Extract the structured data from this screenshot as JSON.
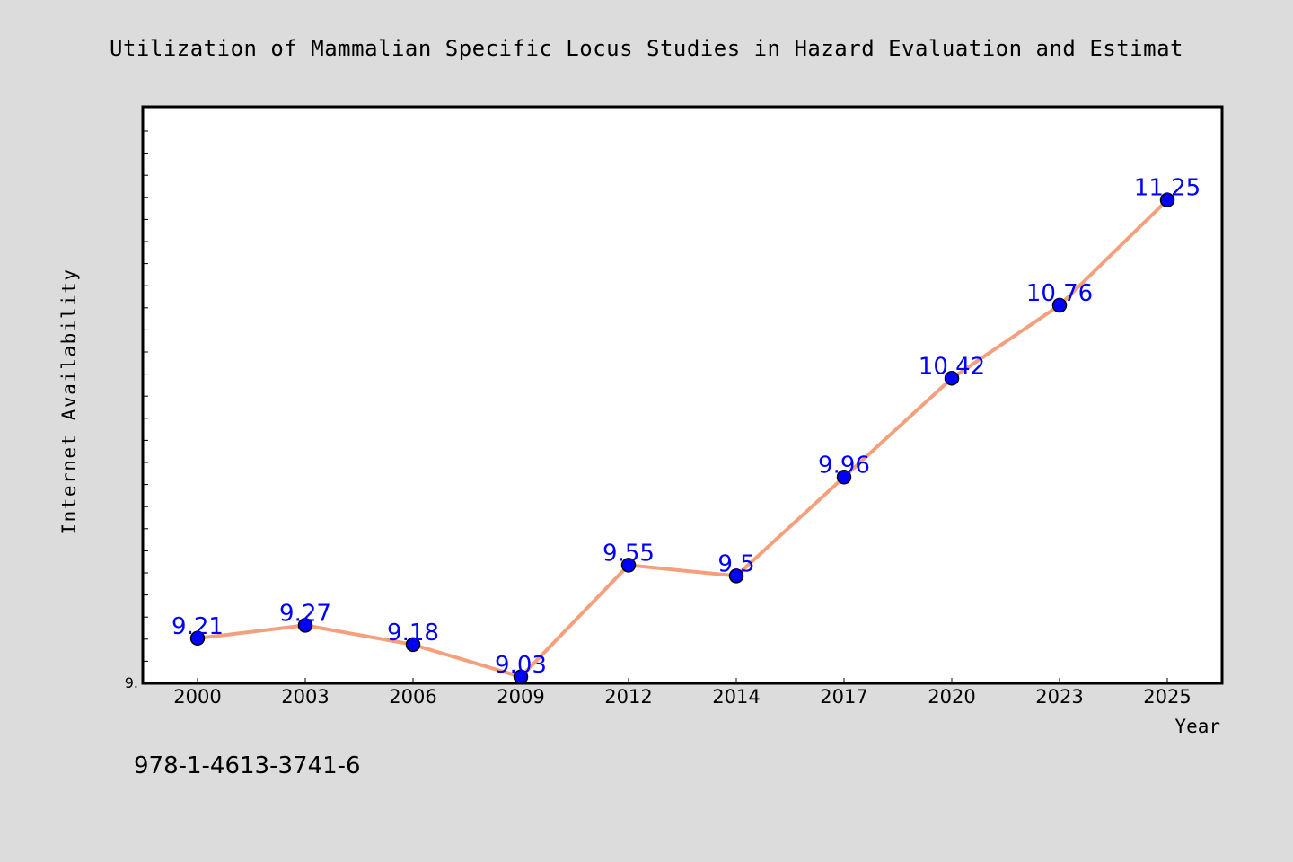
{
  "chart_data": {
    "type": "line",
    "title": "Utilization of Mammalian Specific Locus Studies in Hazard Evaluation and Estimat",
    "xlabel": "Year",
    "ylabel": "Internet Availability",
    "categories": [
      "2000",
      "2003",
      "2006",
      "2009",
      "2012",
      "2014",
      "2017",
      "2020",
      "2023",
      "2025"
    ],
    "values": [
      9.21,
      9.27,
      9.18,
      9.03,
      9.55,
      9.5,
      9.96,
      10.42,
      10.76,
      11.25
    ],
    "data_labels": [
      "9.21",
      "9.27",
      "9.18",
      "9.03",
      "9.55",
      "9.5",
      "9.96",
      "10.42",
      "10.76",
      "11.25"
    ],
    "ylim": [
      9.0,
      11.6
    ],
    "y_tick_label": "9.",
    "grid": false,
    "legend": "none",
    "colors": {
      "line": "#f4a07c",
      "marker": "#0000ff",
      "data_label": "#0000ff",
      "background": "#dcdcdc",
      "plot_background": "#ffffff"
    }
  },
  "footer": {
    "isbn": "978-1-4613-3741-6"
  }
}
